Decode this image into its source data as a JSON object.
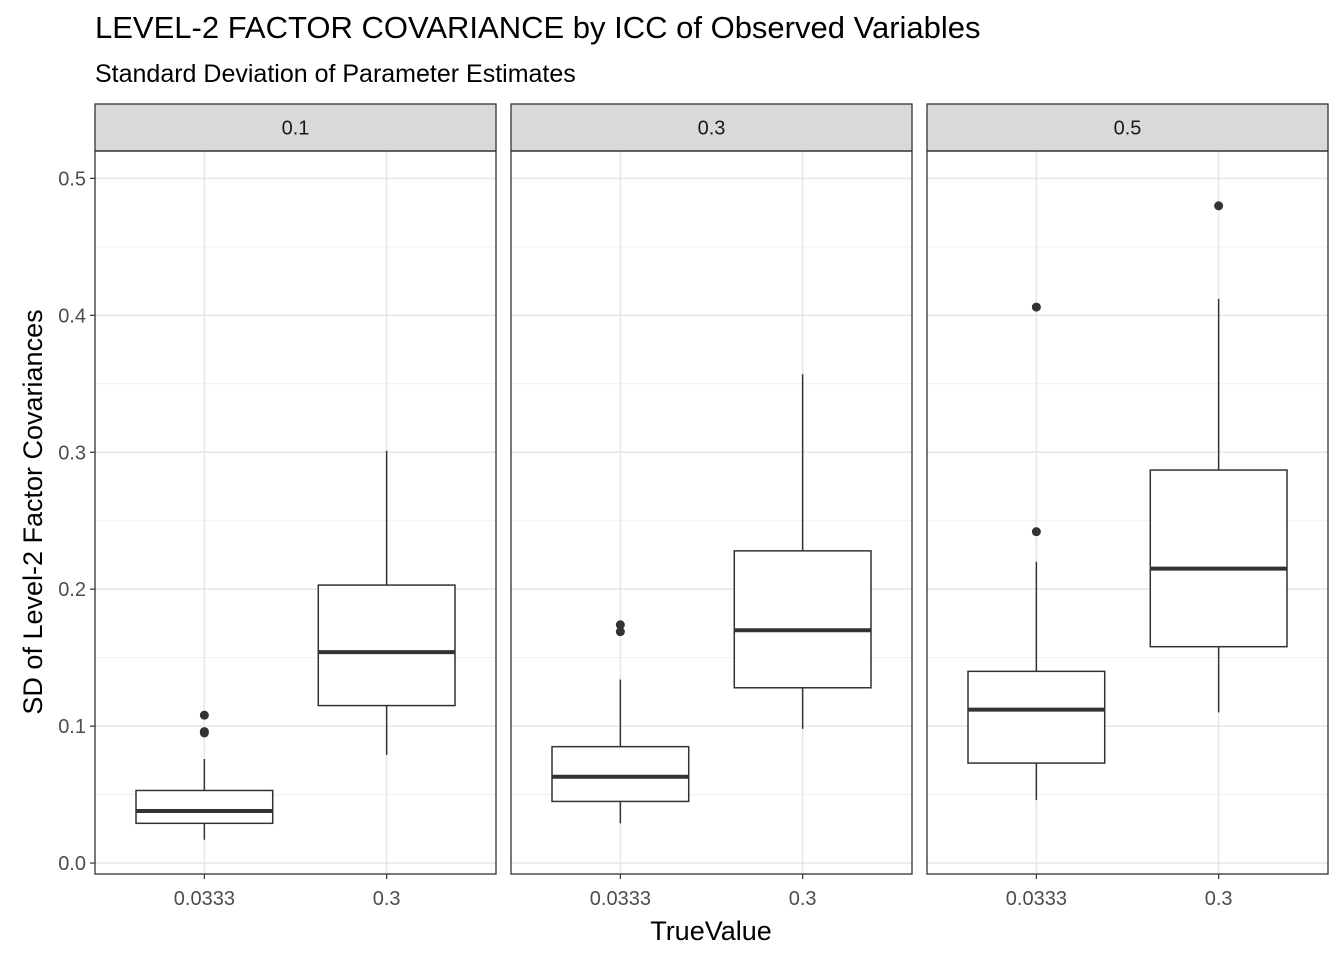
{
  "title": "LEVEL-2 FACTOR COVARIANCE by ICC of Observed Variables",
  "subtitle": "Standard Deviation of Parameter Estimates",
  "chart_data": {
    "type": "boxplot",
    "xlabel": "TrueValue",
    "ylabel": "SD of Level-2 Factor Covariances",
    "categories": [
      "0.0333",
      "0.3"
    ],
    "ylim": [
      -0.008,
      0.52
    ],
    "yticks": [
      0.0,
      0.1,
      0.2,
      0.3,
      0.4,
      0.5
    ],
    "ytick_labels": [
      "0.0",
      "0.1",
      "0.2",
      "0.3",
      "0.4",
      "0.5"
    ],
    "grid": true,
    "facets": [
      {
        "label": "0.1",
        "boxes": [
          {
            "x": "0.0333",
            "lower_whisker": 0.017,
            "q1": 0.029,
            "median": 0.038,
            "q3": 0.053,
            "upper_whisker": 0.076,
            "outliers": [
              0.095,
              0.096,
              0.108
            ]
          },
          {
            "x": "0.3",
            "lower_whisker": 0.079,
            "q1": 0.115,
            "median": 0.154,
            "q3": 0.203,
            "upper_whisker": 0.301,
            "outliers": []
          }
        ]
      },
      {
        "label": "0.3",
        "boxes": [
          {
            "x": "0.0333",
            "lower_whisker": 0.029,
            "q1": 0.045,
            "median": 0.063,
            "q3": 0.085,
            "upper_whisker": 0.134,
            "outliers": [
              0.169,
              0.174
            ]
          },
          {
            "x": "0.3",
            "lower_whisker": 0.098,
            "q1": 0.128,
            "median": 0.17,
            "q3": 0.228,
            "upper_whisker": 0.357,
            "outliers": []
          }
        ]
      },
      {
        "label": "0.5",
        "boxes": [
          {
            "x": "0.0333",
            "lower_whisker": 0.046,
            "q1": 0.073,
            "median": 0.112,
            "q3": 0.14,
            "upper_whisker": 0.22,
            "outliers": [
              0.242,
              0.406
            ]
          },
          {
            "x": "0.3",
            "lower_whisker": 0.11,
            "q1": 0.158,
            "median": 0.215,
            "q3": 0.287,
            "upper_whisker": 0.412,
            "outliers": [
              0.48
            ]
          }
        ]
      }
    ]
  }
}
